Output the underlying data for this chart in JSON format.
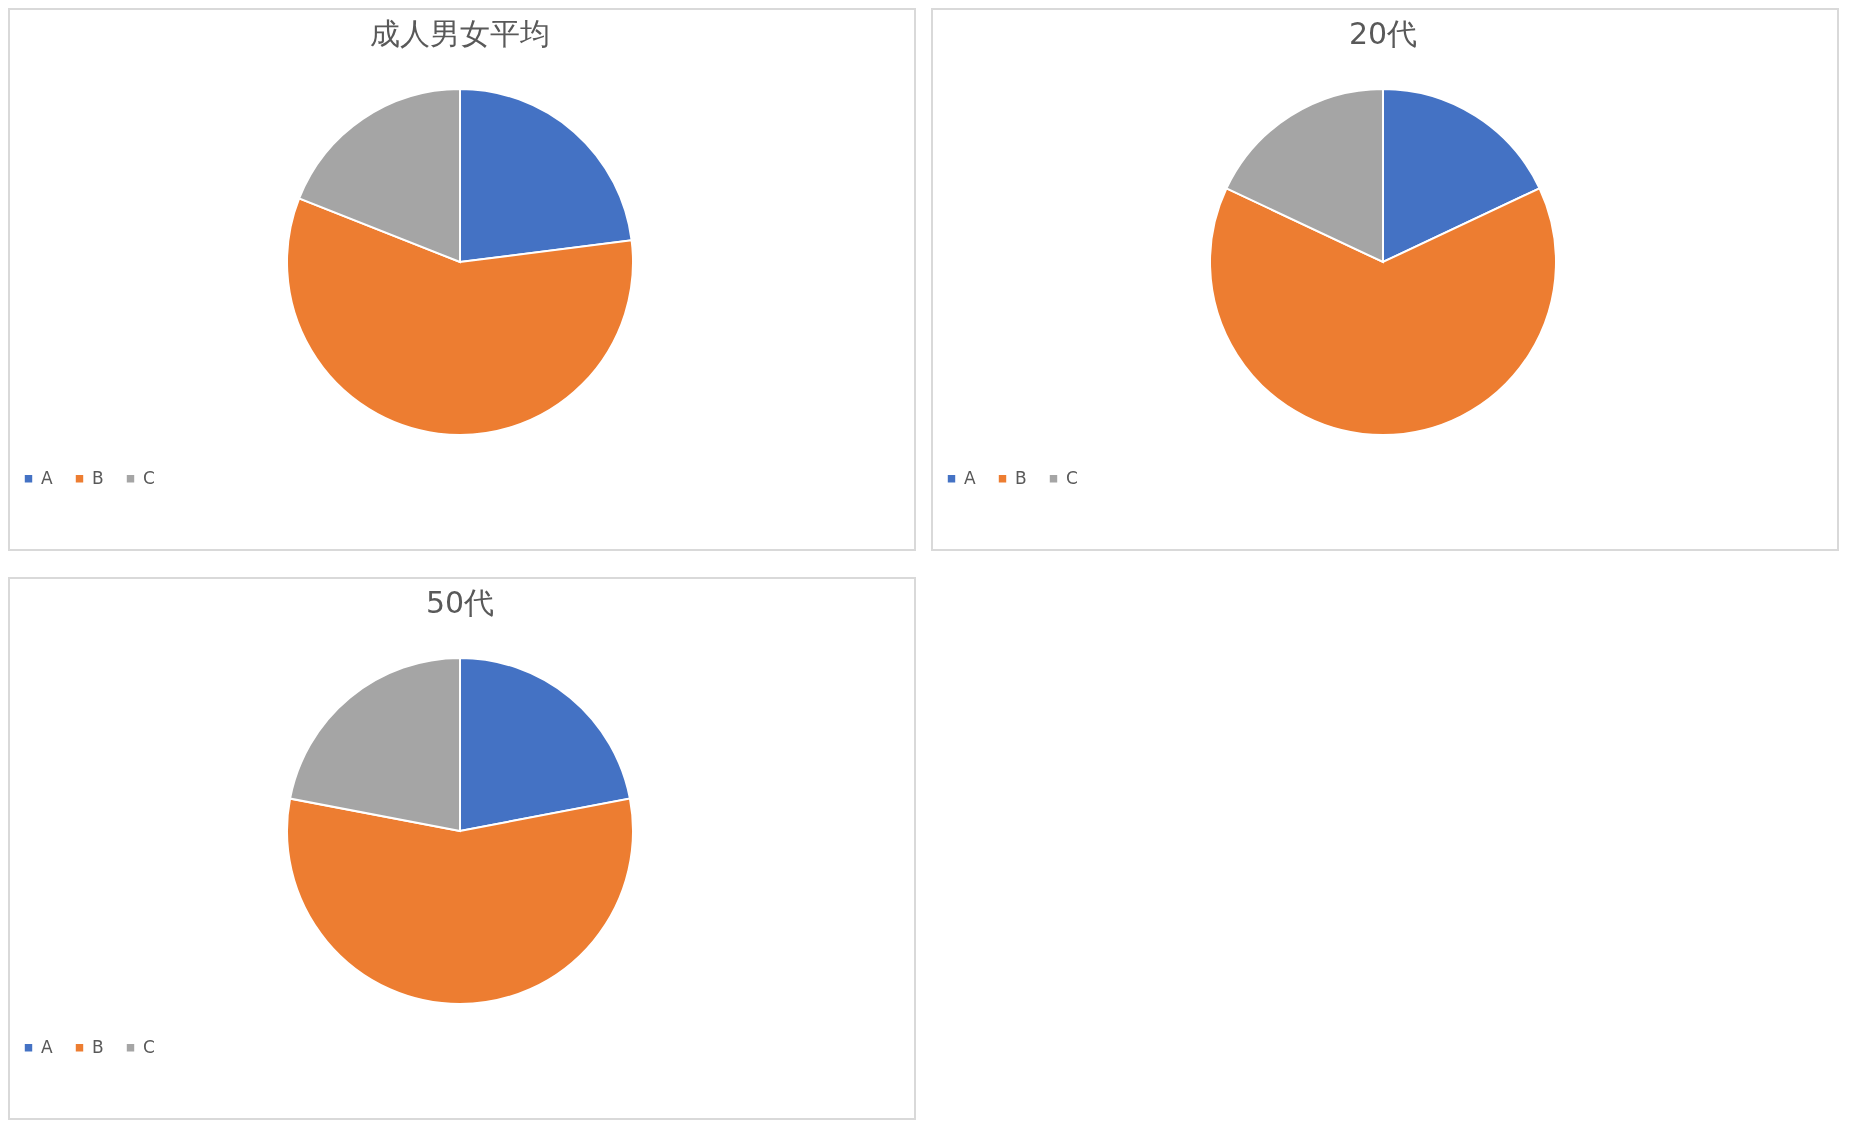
{
  "chart_data": [
    {
      "type": "pie",
      "title": "成人男女平均",
      "categories": [
        "A",
        "B",
        "C"
      ],
      "values": [
        23,
        58,
        19
      ],
      "colors": [
        "#4472c4",
        "#ed7d31",
        "#a5a5a5"
      ],
      "legend": "bottom"
    },
    {
      "type": "pie",
      "title": "20代",
      "categories": [
        "A",
        "B",
        "C"
      ],
      "values": [
        18,
        64,
        18
      ],
      "colors": [
        "#4472c4",
        "#ed7d31",
        "#a5a5a5"
      ],
      "legend": "bottom"
    },
    {
      "type": "pie",
      "title": "50代",
      "categories": [
        "A",
        "B",
        "C"
      ],
      "values": [
        22,
        56,
        22
      ],
      "colors": [
        "#4472c4",
        "#ed7d31",
        "#a5a5a5"
      ],
      "legend": "bottom"
    }
  ]
}
